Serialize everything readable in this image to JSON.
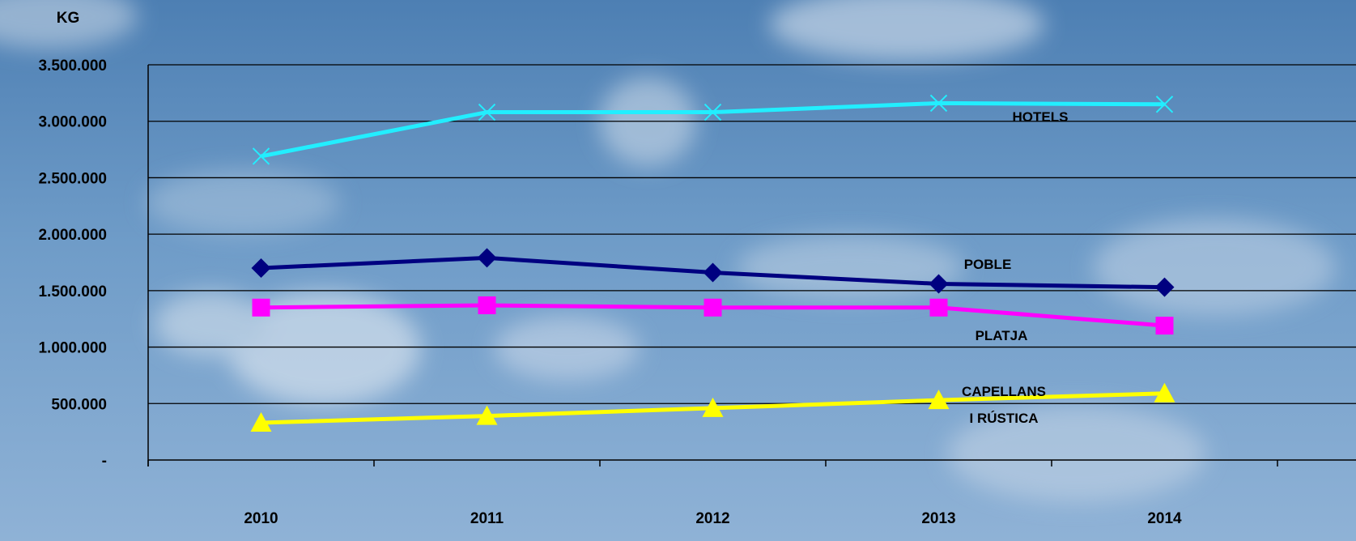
{
  "chart_data": {
    "type": "line",
    "ylabel": "KG",
    "ylim": [
      0,
      3500000
    ],
    "y_ticks": [
      {
        "value": 0,
        "label": "-"
      },
      {
        "value": 500000,
        "label": "500.000"
      },
      {
        "value": 1000000,
        "label": "1.000.000"
      },
      {
        "value": 1500000,
        "label": "1.500.000"
      },
      {
        "value": 2000000,
        "label": "2.000.000"
      },
      {
        "value": 2500000,
        "label": "2.500.000"
      },
      {
        "value": 3000000,
        "label": "3.000.000"
      },
      {
        "value": 3500000,
        "label": "3.500.000"
      }
    ],
    "categories": [
      "2010",
      "2011",
      "2012",
      "2013",
      "2014"
    ],
    "grid": true,
    "series": [
      {
        "id": "hotels",
        "name": "HOTELS",
        "color": "#22EEFF",
        "marker": "x",
        "values": [
          2690000,
          3080000,
          3080000,
          3160000,
          3150000
        ]
      },
      {
        "id": "poble",
        "name": "POBLE",
        "color": "#000080",
        "marker": "diamond",
        "values": [
          1700000,
          1790000,
          1660000,
          1560000,
          1530000
        ]
      },
      {
        "id": "platja",
        "name": "PLATJA",
        "color": "#FF00FF",
        "marker": "square",
        "values": [
          1350000,
          1370000,
          1350000,
          1350000,
          1190000
        ]
      },
      {
        "id": "capellans",
        "name": "CAPELLANS I RÚSTICA",
        "label_lines": [
          "CAPELLANS",
          "I RÚSTICA"
        ],
        "color": "#FFFF00",
        "marker": "triangle",
        "values": [
          330000,
          390000,
          460000,
          530000,
          590000
        ]
      }
    ]
  }
}
